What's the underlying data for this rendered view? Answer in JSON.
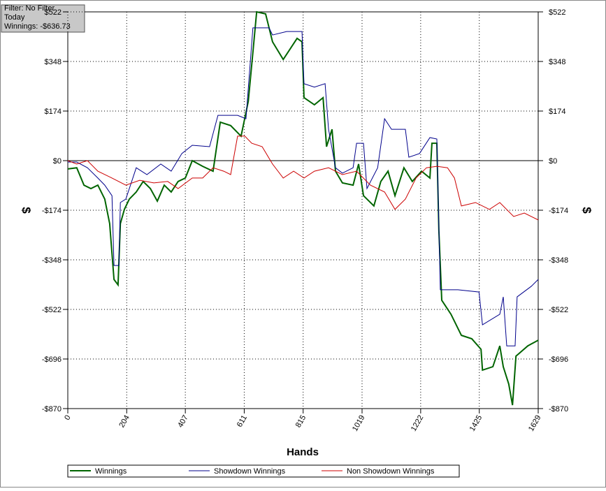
{
  "filter_box": {
    "lines": [
      "Filter: No Filter",
      "Today",
      "Winnings: -$636.73"
    ]
  },
  "chart_data": {
    "type": "line",
    "xlabel": "Hands",
    "ylabel": "$",
    "y2label": "$",
    "xlim": [
      0,
      1629
    ],
    "xticks": [
      0,
      204,
      407,
      611,
      815,
      1019,
      1222,
      1425,
      1629
    ],
    "ylim": [
      -870,
      522
    ],
    "yticks": [
      {
        "value": -870,
        "label": "-$870"
      },
      {
        "value": -696,
        "label": "-$696"
      },
      {
        "value": -522,
        "label": "-$522"
      },
      {
        "value": -348,
        "label": "-$348"
      },
      {
        "value": -174,
        "label": "-$174"
      },
      {
        "value": 0,
        "label": "$0"
      },
      {
        "value": 174,
        "label": "$174"
      },
      {
        "value": 348,
        "label": "$348"
      },
      {
        "value": 522,
        "label": "$522"
      }
    ],
    "grid": true,
    "legend": "bottom",
    "series": [
      {
        "name": "Winnings",
        "color": "#006400",
        "x": [
          0,
          31,
          56,
          80,
          104,
          128,
          145,
          160,
          174,
          182,
          196,
          213,
          237,
          261,
          286,
          310,
          334,
          358,
          382,
          407,
          431,
          467,
          503,
          528,
          564,
          600,
          625,
          641,
          654,
          685,
          709,
          746,
          770,
          794,
          811,
          818,
          854,
          884,
          896,
          915,
          927,
          951,
          988,
          1007,
          1024,
          1060,
          1084,
          1109,
          1133,
          1164,
          1193,
          1225,
          1254,
          1261,
          1278,
          1285,
          1295,
          1327,
          1363,
          1399,
          1431,
          1436,
          1472,
          1496,
          1508,
          1527,
          1540,
          1552,
          1593,
          1629
        ],
        "values": [
          -29,
          -25,
          -86,
          -98,
          -86,
          -135,
          -221,
          -417,
          -436,
          -221,
          -171,
          -135,
          -110,
          -73,
          -98,
          -142,
          -86,
          -110,
          -73,
          -61,
          0,
          -20,
          -37,
          135,
          123,
          86,
          208,
          380,
          522,
          515,
          417,
          355,
          392,
          429,
          417,
          221,
          196,
          221,
          49,
          110,
          -37,
          -78,
          -86,
          -12,
          -123,
          -159,
          -73,
          -37,
          -123,
          -25,
          -73,
          -37,
          -61,
          61,
          61,
          -245,
          -490,
          -539,
          -613,
          -625,
          -662,
          -735,
          -723,
          -650,
          -723,
          -784,
          -858,
          -686,
          -650,
          -630
        ]
      },
      {
        "name": "Showdown Winnings",
        "color": "#00008b",
        "x": [
          0,
          31,
          68,
          104,
          128,
          153,
          160,
          177,
          182,
          201,
          237,
          274,
          322,
          358,
          395,
          431,
          491,
          520,
          588,
          617,
          641,
          656,
          697,
          709,
          758,
          811,
          818,
          854,
          891,
          903,
          927,
          951,
          988,
          1000,
          1024,
          1036,
          1073,
          1097,
          1121,
          1169,
          1181,
          1218,
          1254,
          1278,
          1290,
          1351,
          1424,
          1436,
          1496,
          1508,
          1520,
          1549,
          1556,
          1605,
          1629
        ],
        "values": [
          -5,
          -5,
          -25,
          -61,
          -86,
          -123,
          -368,
          -368,
          -147,
          -135,
          -25,
          -49,
          -12,
          -37,
          25,
          54,
          49,
          159,
          159,
          147,
          466,
          466,
          466,
          441,
          453,
          453,
          270,
          258,
          270,
          110,
          -25,
          -44,
          -25,
          61,
          61,
          -98,
          -25,
          147,
          110,
          110,
          12,
          25,
          81,
          76,
          -453,
          -453,
          -461,
          -576,
          -539,
          -478,
          -650,
          -650,
          -478,
          -441,
          -417
        ]
      },
      {
        "name": "Non Showdown Winnings",
        "color": "#cc0000",
        "x": [
          0,
          31,
          68,
          104,
          153,
          201,
          249,
          298,
          346,
          382,
          431,
          467,
          503,
          540,
          564,
          588,
          613,
          637,
          673,
          709,
          746,
          782,
          818,
          854,
          903,
          951,
          1000,
          1048,
          1097,
          1133,
          1169,
          1206,
          1242,
          1278,
          1315,
          1339,
          1363,
          1412,
          1460,
          1496,
          1544,
          1581,
          1629
        ],
        "values": [
          0,
          -12,
          0,
          -37,
          -61,
          -86,
          -69,
          -78,
          -73,
          -98,
          -61,
          -61,
          -25,
          -37,
          -49,
          86,
          86,
          61,
          49,
          -12,
          -61,
          -37,
          -61,
          -37,
          -25,
          -49,
          -37,
          -86,
          -110,
          -171,
          -135,
          -61,
          -25,
          -20,
          -25,
          -61,
          -159,
          -147,
          -171,
          -147,
          -196,
          -184,
          -208
        ]
      }
    ]
  }
}
